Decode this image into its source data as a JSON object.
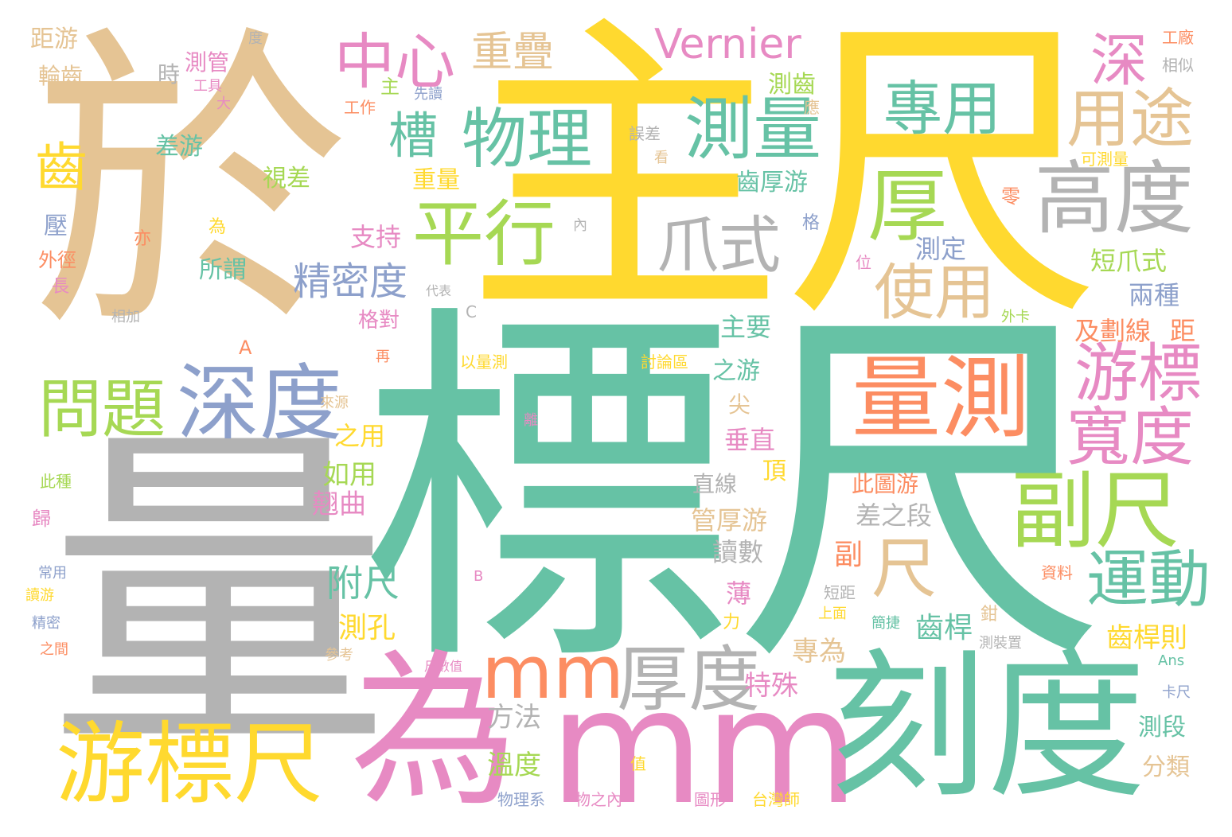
{
  "palette": {
    "teal": "#66c2a5",
    "orange": "#fc8d62",
    "blue": "#8da0cb",
    "pink": "#e78ac3",
    "green": "#a6d854",
    "yellow": "#ffd92f",
    "tan": "#e5c494",
    "gray": "#b3b3b3"
  },
  "words": [
    "標尺",
    "量",
    "主尺",
    "於",
    "為",
    "mm",
    "刻度",
    "游標尺",
    "量測",
    "深度",
    "副尺",
    "高度",
    "厚",
    "mm",
    "厚度",
    "平行",
    "測量",
    "物理",
    "寬度",
    "游標",
    "運動",
    "用途",
    "使用",
    "爪式",
    "問題",
    "專用",
    "中心",
    "槽",
    "深",
    "精密度",
    "尺",
    "Vernier",
    "重疊",
    "附尺",
    "齒",
    "測孔",
    "齒桿",
    "齒桿則",
    "方法",
    "溫度",
    "特殊",
    "專為",
    "分類",
    "測段",
    "讀數",
    "薄",
    "管厚游",
    "差之段",
    "直線",
    "此圖游",
    "頂",
    "垂直",
    "翹曲",
    "如用",
    "之用",
    "尖",
    "之游",
    "主要",
    "及劃線",
    "距",
    "兩種",
    "短爪式",
    "測定",
    "支持",
    "所謂",
    "視差",
    "差游",
    "時",
    "測管",
    "輪齒",
    "距游",
    "工具",
    "大",
    "主",
    "先讀",
    "工作",
    "重量",
    "齒厚游",
    "測齒",
    "應",
    "誤差",
    "看",
    "零",
    "可測量",
    "相似",
    "工廠",
    "度",
    "為",
    "壓",
    "亦",
    "外徑",
    "長",
    "相加",
    "代表",
    "內",
    "格",
    "位",
    "A",
    "C",
    "格對",
    "再",
    "以量測",
    "討論區",
    "外卡",
    "來源",
    "離",
    "此種",
    "歸",
    "常用",
    "讀游",
    "精密",
    "之間",
    "參考",
    "尺數值",
    "B",
    "力",
    "上面",
    "短距",
    "簡捷",
    "鉗",
    "資料",
    "測裝置",
    "Ans",
    "卡尺",
    "值",
    "物理系",
    "物之內",
    "圖形",
    "台灣師",
    "副"
  ]
}
